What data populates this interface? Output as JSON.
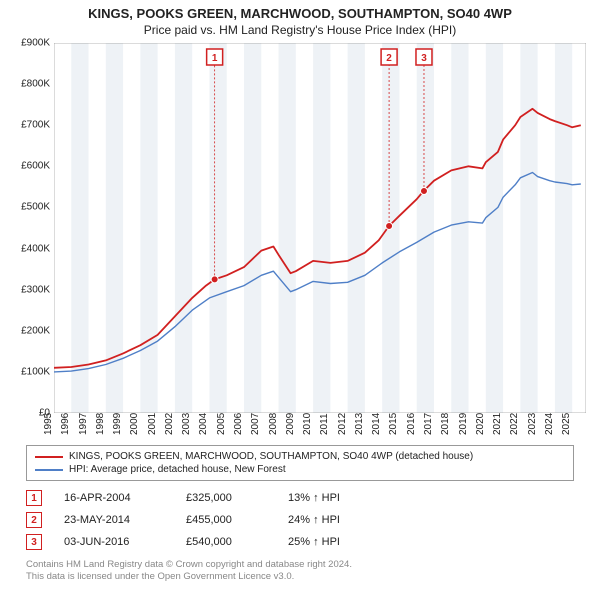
{
  "title": "KINGS, POOKS GREEN, MARCHWOOD, SOUTHAMPTON, SO40 4WP",
  "subtitle": "Price paid vs. HM Land Registry's House Price Index (HPI)",
  "chart": {
    "type": "line",
    "background_color": "#ffffff",
    "band_color": "#eef2f6",
    "xlim": [
      1995,
      2025.8
    ],
    "ylim": [
      0,
      900
    ],
    "yticks": [
      0,
      100,
      200,
      300,
      400,
      500,
      600,
      700,
      800,
      900
    ],
    "ytick_labels": [
      "£0",
      "£100K",
      "£200K",
      "£300K",
      "£400K",
      "£500K",
      "£600K",
      "£700K",
      "£800K",
      "£900K"
    ],
    "xticks": [
      1995,
      1996,
      1997,
      1998,
      1999,
      2000,
      2001,
      2002,
      2003,
      2004,
      2005,
      2006,
      2007,
      2008,
      2009,
      2010,
      2011,
      2012,
      2013,
      2014,
      2015,
      2016,
      2017,
      2018,
      2019,
      2020,
      2021,
      2022,
      2023,
      2024,
      2025
    ],
    "series": [
      {
        "name": "subject",
        "label": "KINGS, POOKS GREEN, MARCHWOOD, SOUTHAMPTON, SO40 4WP (detached house)",
        "color": "#d12020",
        "width": 1.8,
        "points": [
          [
            1995,
            110
          ],
          [
            1996,
            112
          ],
          [
            1997,
            118
          ],
          [
            1998,
            128
          ],
          [
            1999,
            145
          ],
          [
            2000,
            165
          ],
          [
            2001,
            190
          ],
          [
            2002,
            235
          ],
          [
            2003,
            280
          ],
          [
            2003.8,
            310
          ],
          [
            2004.3,
            325
          ],
          [
            2005,
            335
          ],
          [
            2006,
            355
          ],
          [
            2007,
            395
          ],
          [
            2007.7,
            405
          ],
          [
            2008,
            385
          ],
          [
            2008.7,
            340
          ],
          [
            2009,
            345
          ],
          [
            2010,
            370
          ],
          [
            2011,
            365
          ],
          [
            2012,
            370
          ],
          [
            2013,
            390
          ],
          [
            2013.8,
            420
          ],
          [
            2014.4,
            455
          ],
          [
            2015,
            480
          ],
          [
            2016,
            520
          ],
          [
            2016.4,
            540
          ],
          [
            2017,
            565
          ],
          [
            2018,
            590
          ],
          [
            2019,
            600
          ],
          [
            2019.8,
            595
          ],
          [
            2020,
            610
          ],
          [
            2020.7,
            635
          ],
          [
            2021,
            665
          ],
          [
            2021.7,
            700
          ],
          [
            2022,
            720
          ],
          [
            2022.7,
            740
          ],
          [
            2023,
            730
          ],
          [
            2023.7,
            715
          ],
          [
            2024,
            710
          ],
          [
            2024.7,
            700
          ],
          [
            2025,
            695
          ],
          [
            2025.5,
            700
          ]
        ]
      },
      {
        "name": "hpi",
        "label": "HPI: Average price, detached house, New Forest",
        "color": "#4f7fc7",
        "width": 1.4,
        "points": [
          [
            1995,
            100
          ],
          [
            1996,
            102
          ],
          [
            1997,
            108
          ],
          [
            1998,
            118
          ],
          [
            1999,
            133
          ],
          [
            2000,
            152
          ],
          [
            2001,
            175
          ],
          [
            2002,
            210
          ],
          [
            2003,
            250
          ],
          [
            2004,
            280
          ],
          [
            2005,
            295
          ],
          [
            2006,
            310
          ],
          [
            2007,
            335
          ],
          [
            2007.7,
            345
          ],
          [
            2008,
            330
          ],
          [
            2008.7,
            295
          ],
          [
            2009,
            300
          ],
          [
            2010,
            320
          ],
          [
            2011,
            315
          ],
          [
            2012,
            318
          ],
          [
            2013,
            335
          ],
          [
            2014,
            365
          ],
          [
            2015,
            392
          ],
          [
            2016,
            415
          ],
          [
            2017,
            440
          ],
          [
            2018,
            457
          ],
          [
            2019,
            465
          ],
          [
            2019.8,
            462
          ],
          [
            2020,
            475
          ],
          [
            2020.7,
            500
          ],
          [
            2021,
            525
          ],
          [
            2021.7,
            555
          ],
          [
            2022,
            572
          ],
          [
            2022.7,
            585
          ],
          [
            2023,
            575
          ],
          [
            2023.7,
            565
          ],
          [
            2024,
            562
          ],
          [
            2024.7,
            558
          ],
          [
            2025,
            555
          ],
          [
            2025.5,
            557
          ]
        ]
      }
    ],
    "sale_markers": [
      {
        "n": 1,
        "x": 2004.3,
        "y": 325
      },
      {
        "n": 2,
        "x": 2014.4,
        "y": 455
      },
      {
        "n": 3,
        "x": 2016.42,
        "y": 540
      }
    ],
    "marker_color": "#d12020",
    "marker_fill": "#ffffff"
  },
  "legend": {
    "rows": [
      {
        "color": "#d12020",
        "label": "KINGS, POOKS GREEN, MARCHWOOD, SOUTHAMPTON, SO40 4WP (detached house)"
      },
      {
        "color": "#4f7fc7",
        "label": "HPI: Average price, detached house, New Forest"
      }
    ]
  },
  "sales": [
    {
      "n": 1,
      "date": "16-APR-2004",
      "price": "£325,000",
      "delta": "13% ↑ HPI"
    },
    {
      "n": 2,
      "date": "23-MAY-2014",
      "price": "£455,000",
      "delta": "24% ↑ HPI"
    },
    {
      "n": 3,
      "date": "03-JUN-2016",
      "price": "£540,000",
      "delta": "25% ↑ HPI"
    }
  ],
  "footer_line1": "Contains HM Land Registry data © Crown copyright and database right 2024.",
  "footer_line2": "This data is licensed under the Open Government Licence v3.0."
}
